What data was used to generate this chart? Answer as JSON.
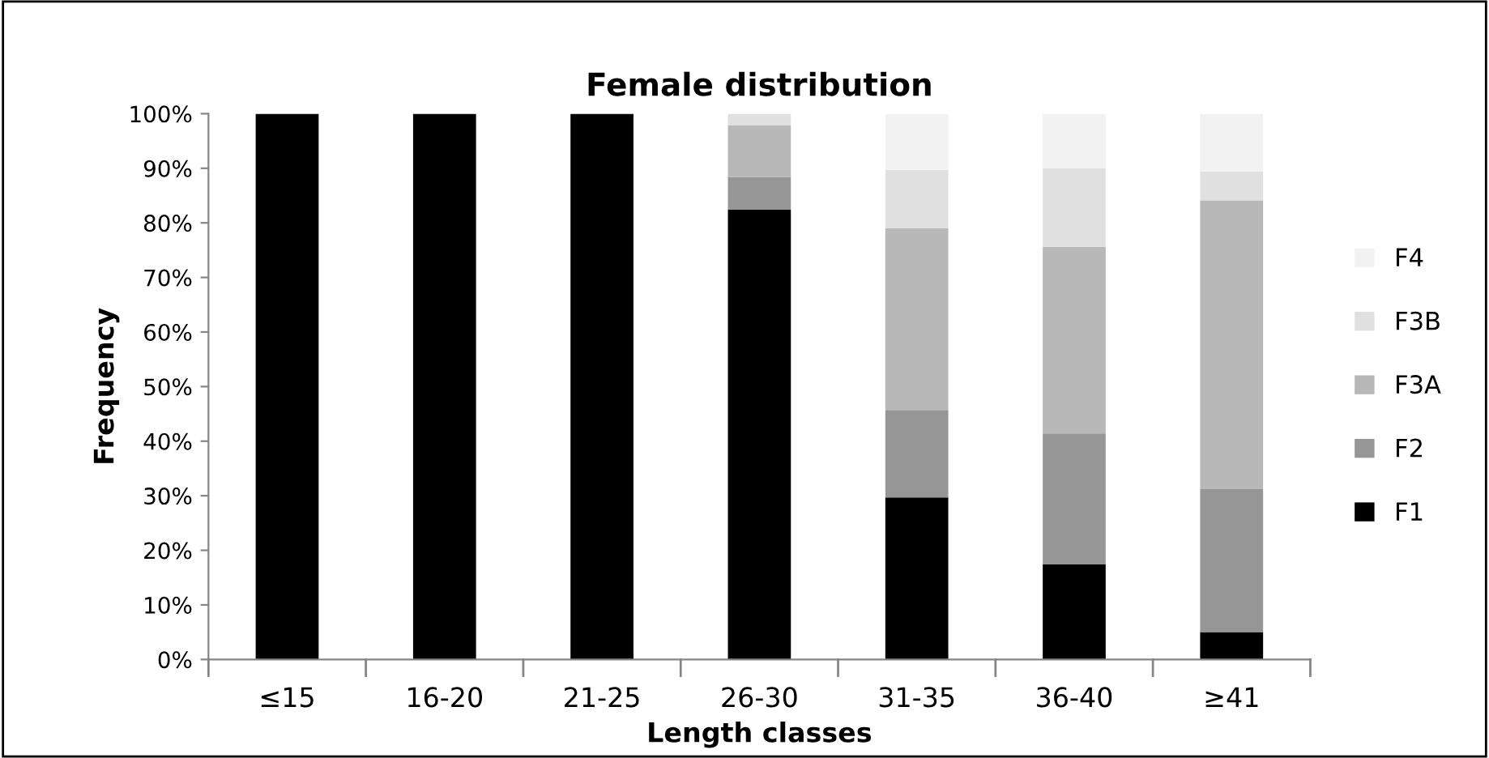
{
  "chart_data": {
    "type": "bar",
    "stacked": true,
    "title": "Female distribution",
    "xlabel": "Length classes",
    "ylabel": "Frequency",
    "categories": [
      "≤15",
      "16-20",
      "21-25",
      "26-30",
      "31-35",
      "36-40",
      "≥41"
    ],
    "series": [
      {
        "name": "F1",
        "color": "#000000",
        "values": [
          100,
          100,
          100,
          82.4,
          29.7,
          17.4,
          5.0
        ]
      },
      {
        "name": "F2",
        "color": "#969696",
        "values": [
          0,
          0,
          0,
          6.0,
          16.0,
          24.0,
          26.2
        ]
      },
      {
        "name": "F3A",
        "color": "#b8b8b8",
        "values": [
          0,
          0,
          0,
          9.5,
          33.3,
          34.2,
          52.9
        ]
      },
      {
        "name": "F3B",
        "color": "#e0e0e0",
        "values": [
          0,
          0,
          0,
          2.1,
          10.7,
          14.4,
          5.3
        ]
      },
      {
        "name": "F4",
        "color": "#f2f2f2",
        "values": [
          0,
          0,
          0,
          0,
          10.3,
          10.0,
          10.6
        ]
      }
    ],
    "ylim": [
      0,
      100
    ],
    "yticks": [
      {
        "value": 0,
        "label": "0%"
      },
      {
        "value": 10,
        "label": "10%"
      },
      {
        "value": 20,
        "label": "20%"
      },
      {
        "value": 30,
        "label": "30%"
      },
      {
        "value": 40,
        "label": "40%"
      },
      {
        "value": 50,
        "label": "50%"
      },
      {
        "value": 60,
        "label": "60%"
      },
      {
        "value": 70,
        "label": "70%"
      },
      {
        "value": 80,
        "label": "80%"
      },
      {
        "value": 90,
        "label": "90%"
      },
      {
        "value": 100,
        "label": "100%"
      }
    ],
    "grid": false,
    "legend": "right"
  }
}
